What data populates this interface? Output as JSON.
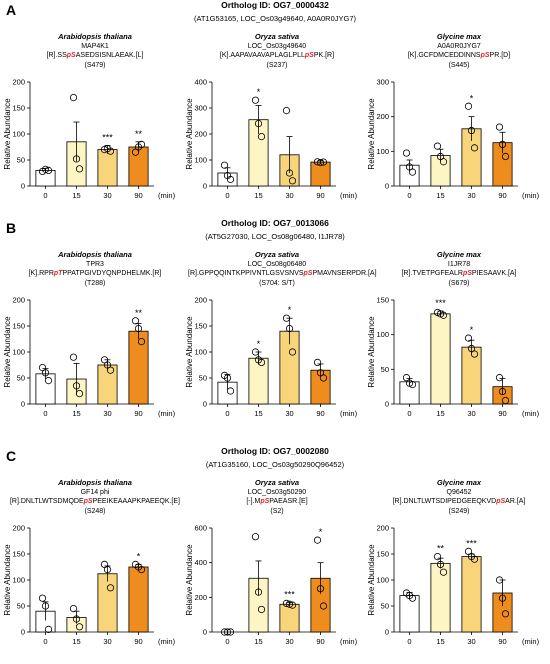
{
  "colors": [
    "#ffffff",
    "#fdf6c4",
    "#f8d57a",
    "#ef8c1e"
  ],
  "chart_data": [
    {
      "letter": "A",
      "ortholog": "Ortholog ID: OG7_0000432",
      "sub": "(AT1G53165, LOC_Os03g49640, A0A0R0JYG7)",
      "plots": [
        {
          "species": "Arabidopsis thaliana",
          "id": "MAP4K1",
          "pep_pre": "[R].SS",
          "pep_site": "pS",
          "pep_post": "ASEDSISNLAEAK.[L]",
          "site": "(S479)",
          "type": "bar",
          "categories": [
            "0",
            "15",
            "30",
            "90"
          ],
          "xunit": "(min)",
          "ylabel": "Relative Abundance",
          "ylim": [
            0,
            200
          ],
          "yticks": [
            0,
            50,
            100,
            150,
            200
          ],
          "values": [
            30,
            85,
            70,
            75
          ],
          "errors": [
            4,
            38,
            8,
            10
          ],
          "points": [
            [
              28,
              32,
              30
            ],
            [
              170,
              52,
              33
            ],
            [
              70,
              72,
              67
            ],
            [
              65,
              75,
              80
            ]
          ],
          "sig": [
            "",
            "",
            "***",
            "**"
          ]
        },
        {
          "species": "Oryza sativa",
          "id": "LOC_Os03g49640",
          "pep_pre": "[K].AAPAVAAVAPLAGLPLL",
          "pep_site": "pS",
          "pep_post": "PK.[R]",
          "site": "(S237)",
          "type": "bar",
          "categories": [
            "0",
            "15",
            "30",
            "90"
          ],
          "xunit": "(min)",
          "ylabel": "Relative Abundance",
          "ylim": [
            0,
            400
          ],
          "yticks": [
            0,
            100,
            200,
            300,
            400
          ],
          "values": [
            50,
            255,
            120,
            92
          ],
          "errors": [
            20,
            55,
            70,
            5
          ],
          "points": [
            [
              80,
              40,
              25
            ],
            [
              330,
              240,
              190
            ],
            [
              290,
              50,
              20
            ],
            [
              93,
              90,
              92
            ]
          ],
          "sig": [
            "",
            "*",
            "",
            ""
          ]
        },
        {
          "species": "Glycine max",
          "id": "A0A0R0JYG7",
          "pep_pre": "[K].GCFDMCEDDINNS",
          "pep_site": "pS",
          "pep_post": "PR.[D]",
          "site": "(S445)",
          "type": "bar",
          "categories": [
            "0",
            "15",
            "30",
            "90"
          ],
          "xunit": "(min)",
          "ylabel": "Relative Abundance",
          "ylim": [
            0,
            300
          ],
          "yticks": [
            0,
            100,
            200,
            300
          ],
          "values": [
            60,
            88,
            165,
            125
          ],
          "errors": [
            15,
            18,
            35,
            30
          ],
          "points": [
            [
              95,
              55,
              40
            ],
            [
              115,
              85,
              70
            ],
            [
              230,
              160,
              110
            ],
            [
              170,
              120,
              85
            ]
          ],
          "sig": [
            "",
            "",
            "*",
            ""
          ]
        }
      ]
    },
    {
      "letter": "B",
      "ortholog": "Ortholog ID: OG7_0013066",
      "sub": "(AT5G27030, LOC_Os08g06480, I1JR78)",
      "plots": [
        {
          "species": "Arabidopsis thaliana",
          "id": "TPR3",
          "pep_pre": "[K].RPR",
          "pep_site": "pT",
          "pep_post": "PPATPGIVDYQNPDHELMK.[R]",
          "site": "(T288)",
          "type": "bar",
          "categories": [
            "0",
            "15",
            "30",
            "90"
          ],
          "xunit": "(min)",
          "ylabel": "Relative Abundance",
          "ylim": [
            0,
            200
          ],
          "yticks": [
            0,
            50,
            100,
            150,
            200
          ],
          "values": [
            58,
            48,
            75,
            140
          ],
          "errors": [
            10,
            30,
            10,
            15
          ],
          "points": [
            [
              70,
              60,
              45
            ],
            [
              90,
              35,
              20
            ],
            [
              85,
              75,
              65
            ],
            [
              160,
              145,
              120
            ]
          ],
          "sig": [
            "",
            "",
            "",
            "**"
          ]
        },
        {
          "species": "Oryza sativa",
          "id": "LOC_Os08g06480",
          "pep_pre": "[R].GPPQQINTKPPIVNTLGSVSNVS",
          "pep_site": "pS",
          "pep_post": "PMAVNSERPDR.[A]",
          "site": "(S704: S/T)",
          "type": "bar",
          "categories": [
            "0",
            "15",
            "30",
            "90"
          ],
          "xunit": "(min)",
          "ylabel": "Relative Abundance",
          "ylim": [
            0,
            200
          ],
          "yticks": [
            0,
            50,
            100,
            150,
            200
          ],
          "values": [
            42,
            88,
            140,
            65
          ],
          "errors": [
            15,
            12,
            25,
            12
          ],
          "points": [
            [
              55,
              50,
              25
            ],
            [
              100,
              85,
              80
            ],
            [
              165,
              145,
              100
            ],
            [
              80,
              60,
              50
            ]
          ],
          "sig": [
            "",
            "*",
            "*",
            ""
          ]
        },
        {
          "species": "Glycine max",
          "id": "I1JR78",
          "pep_pre": "[R].TVETPGFEALR",
          "pep_site": "pS",
          "pep_post": "PIESAAVK.[A]",
          "site": "(S679)",
          "type": "bar",
          "categories": [
            "0",
            "15",
            "30",
            "90"
          ],
          "xunit": "(min)",
          "ylabel": "Relative Abundance",
          "ylim": [
            0,
            150
          ],
          "yticks": [
            0,
            50,
            100,
            150
          ],
          "values": [
            32,
            130,
            82,
            25
          ],
          "errors": [
            5,
            4,
            10,
            12
          ],
          "points": [
            [
              38,
              30,
              28
            ],
            [
              132,
              130,
              128
            ],
            [
              95,
              80,
              72
            ],
            [
              38,
              18,
              5
            ]
          ],
          "sig": [
            "",
            "***",
            "*",
            ""
          ]
        }
      ]
    },
    {
      "letter": "C",
      "ortholog": "Ortholog ID: OG7_0002080",
      "sub": "(AT1G35160, LOC_Os03g50290Q96452)",
      "plots": [
        {
          "species": "Arabidopsis thaliana",
          "id": "GF14 phi",
          "pep_pre": "[R].DNLTLWTSDMQDE",
          "pep_site": "pS",
          "pep_post": "PEEIKEAAAPKPAEEQK.[E]",
          "site": "(S248)",
          "type": "bar",
          "categories": [
            "0",
            "15",
            "30",
            "90"
          ],
          "xunit": "(min)",
          "ylabel": "Relative Abundance",
          "ylim": [
            0,
            200
          ],
          "yticks": [
            0,
            50,
            100,
            150,
            200
          ],
          "values": [
            40,
            28,
            112,
            125
          ],
          "errors": [
            18,
            12,
            15,
            5
          ],
          "points": [
            [
              65,
              50,
              5
            ],
            [
              45,
              25,
              10
            ],
            [
              130,
              120,
              85
            ],
            [
              130,
              125,
              120
            ]
          ],
          "sig": [
            "",
            "",
            "",
            "*"
          ]
        },
        {
          "species": "Oryza sativa",
          "id": "LOC_Os03g50290",
          "pep_pre": "[-].M",
          "pep_site": "pS",
          "pep_post": "PAEASR.[E]",
          "site": "(S2)",
          "type": "bar",
          "categories": [
            "0",
            "15",
            "30",
            "90"
          ],
          "xunit": "(min)",
          "ylabel": "Relative Abundance",
          "ylim": [
            0,
            600
          ],
          "yticks": [
            0,
            200,
            400,
            600
          ],
          "values": [
            0,
            310,
            160,
            310
          ],
          "errors": [
            0,
            100,
            10,
            90
          ],
          "points": [
            [
              0,
              0,
              0
            ],
            [
              550,
              230,
              130
            ],
            [
              165,
              160,
              155
            ],
            [
              530,
              250,
              150
            ]
          ],
          "sig": [
            "",
            "",
            "***",
            "*"
          ]
        },
        {
          "species": "Glycine max",
          "id": "Q96452",
          "pep_pre": "[R].DNLTLWTSDIPEDGEEQKVD",
          "pep_site": "pS",
          "pep_post": "AR.[A]",
          "site": "(S249)",
          "type": "bar",
          "categories": [
            "0",
            "15",
            "30",
            "90"
          ],
          "xunit": "(min)",
          "ylabel": "Relative Abundance",
          "ylim": [
            0,
            200
          ],
          "yticks": [
            0,
            50,
            100,
            150,
            200
          ],
          "values": [
            70,
            132,
            145,
            75
          ],
          "errors": [
            6,
            10,
            5,
            25
          ],
          "points": [
            [
              75,
              70,
              65
            ],
            [
              145,
              130,
              115
            ],
            [
              155,
              145,
              140
            ],
            [
              100,
              65,
              35
            ]
          ],
          "sig": [
            "",
            "**",
            "***",
            ""
          ]
        }
      ]
    }
  ]
}
